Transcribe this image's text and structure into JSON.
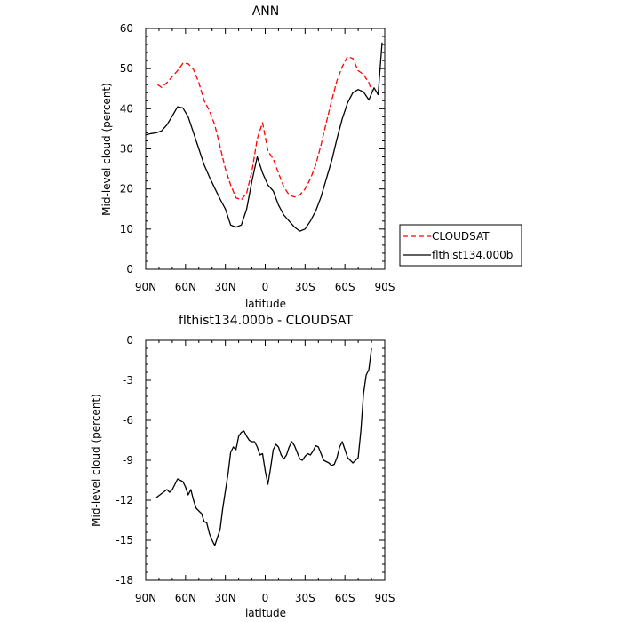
{
  "chart_data": [
    {
      "type": "line",
      "title": "ANN",
      "xlabel": "latitude",
      "ylabel": "Mid-level cloud (percent)",
      "xlim": [
        90,
        -90
      ],
      "ylim": [
        0,
        60
      ],
      "x_ticks": [
        90,
        60,
        30,
        0,
        -30,
        -60,
        -90
      ],
      "x_tick_labels": [
        "90N",
        "60N",
        "30N",
        "0",
        "30S",
        "60S",
        "90S"
      ],
      "y_ticks": [
        0,
        10,
        20,
        30,
        40,
        50,
        60
      ],
      "y_tick_labels": [
        "0",
        "10",
        "20",
        "30",
        "40",
        "50",
        "60"
      ],
      "legend_position": "outside-right",
      "series": [
        {
          "name": "CLOUDSAT",
          "color": "#ff0000",
          "dash": "dashed",
          "x": [
            81,
            78,
            74,
            70,
            66,
            62,
            58,
            54,
            50,
            46,
            42,
            38,
            34,
            30,
            26,
            22,
            18,
            14,
            10,
            6,
            2,
            -2,
            -6,
            -10,
            -14,
            -18,
            -22,
            -26,
            -30,
            -34,
            -38,
            -42,
            -46,
            -50,
            -54,
            -58,
            -62,
            -66,
            -70,
            -74,
            -78,
            -80
          ],
          "y": [
            46,
            45.3,
            46.5,
            48,
            49.5,
            51.3,
            51.2,
            49.8,
            46.5,
            42,
            39.5,
            36,
            30.5,
            25,
            21,
            17.8,
            17.3,
            19,
            24.5,
            32.5,
            36.5,
            29.5,
            27.5,
            24,
            20.5,
            18.5,
            18,
            18.5,
            20,
            22.5,
            26,
            31,
            36.5,
            42,
            47,
            50.5,
            53,
            52.5,
            49.5,
            48.5,
            46.5,
            44.5
          ]
        },
        {
          "name": "flthist134.000b",
          "color": "#000000",
          "dash": "solid",
          "x": [
            90,
            86,
            82,
            78,
            74,
            70,
            66,
            62,
            58,
            54,
            50,
            46,
            42,
            38,
            34,
            30,
            26,
            22,
            18,
            14,
            10,
            6,
            2,
            -2,
            -6,
            -10,
            -14,
            -18,
            -22,
            -26,
            -30,
            -34,
            -38,
            -42,
            -46,
            -50,
            -54,
            -58,
            -62,
            -66,
            -70,
            -74,
            -78,
            -82,
            -85,
            -88
          ],
          "y": [
            33.5,
            33.8,
            34,
            34.5,
            36,
            38.2,
            40.5,
            40.2,
            38,
            34,
            30,
            26,
            23,
            20.2,
            17.5,
            15,
            11,
            10.5,
            11,
            15,
            22,
            28,
            24,
            21,
            19.5,
            16,
            13.5,
            12,
            10.5,
            9.5,
            10,
            12,
            14.5,
            18,
            22.5,
            27,
            32.5,
            37.5,
            41.5,
            44,
            44.8,
            44.2,
            42.2,
            45.2,
            43.5,
            56.5
          ]
        }
      ]
    },
    {
      "type": "line",
      "title": "flthist134.000b - CLOUDSAT",
      "xlabel": "latitude",
      "ylabel": "Mid-level cloud (percent)",
      "xlim": [
        90,
        -90
      ],
      "ylim": [
        -18,
        0
      ],
      "x_ticks": [
        90,
        60,
        30,
        0,
        -30,
        -60,
        -90
      ],
      "x_tick_labels": [
        "90N",
        "60N",
        "30N",
        "0",
        "30S",
        "60S",
        "90S"
      ],
      "y_ticks": [
        -18,
        -15,
        -12,
        -9,
        -6,
        -3,
        0
      ],
      "y_tick_labels": [
        "-18",
        "-15",
        "-12",
        "-9",
        "-6",
        "-3",
        "0"
      ],
      "series": [
        {
          "color": "#000000",
          "dash": "solid",
          "x": [
            82,
            78,
            74,
            72,
            70,
            66,
            62,
            60,
            58,
            56,
            54,
            52,
            50,
            48,
            46,
            44,
            42,
            40,
            38,
            34,
            32,
            30,
            28,
            26,
            24,
            22,
            20,
            18,
            16,
            14,
            12,
            10,
            8,
            6,
            4,
            2,
            0,
            -2,
            -4,
            -6,
            -8,
            -10,
            -12,
            -14,
            -16,
            -18,
            -20,
            -22,
            -24,
            -26,
            -28,
            -30,
            -32,
            -34,
            -36,
            -38,
            -40,
            -42,
            -44,
            -46,
            -48,
            -50,
            -52,
            -54,
            -56,
            -58,
            -60,
            -62,
            -66,
            -70,
            -72,
            -74,
            -76,
            -78,
            -80
          ],
          "y": [
            -11.8,
            -11.5,
            -11.2,
            -11.4,
            -11.2,
            -10.4,
            -10.6,
            -11.0,
            -11.6,
            -11.2,
            -12.0,
            -12.6,
            -12.8,
            -13.0,
            -13.6,
            -13.7,
            -14.5,
            -15.0,
            -15.4,
            -14.2,
            -12.6,
            -11.3,
            -10.0,
            -8.4,
            -8.0,
            -8.2,
            -7.2,
            -6.9,
            -6.8,
            -7.2,
            -7.5,
            -7.6,
            -7.6,
            -8.0,
            -8.6,
            -8.5,
            -9.8,
            -10.8,
            -9.6,
            -8.2,
            -7.8,
            -8.0,
            -8.6,
            -8.9,
            -8.6,
            -8.0,
            -7.6,
            -7.9,
            -8.4,
            -8.9,
            -9.0,
            -8.7,
            -8.5,
            -8.6,
            -8.3,
            -7.9,
            -8.0,
            -8.5,
            -9.0,
            -9.1,
            -9.2,
            -9.4,
            -9.3,
            -8.8,
            -8.0,
            -7.6,
            -8.2,
            -8.8,
            -9.2,
            -8.8,
            -6.8,
            -4.0,
            -2.6,
            -2.2,
            -0.6
          ]
        }
      ]
    }
  ]
}
